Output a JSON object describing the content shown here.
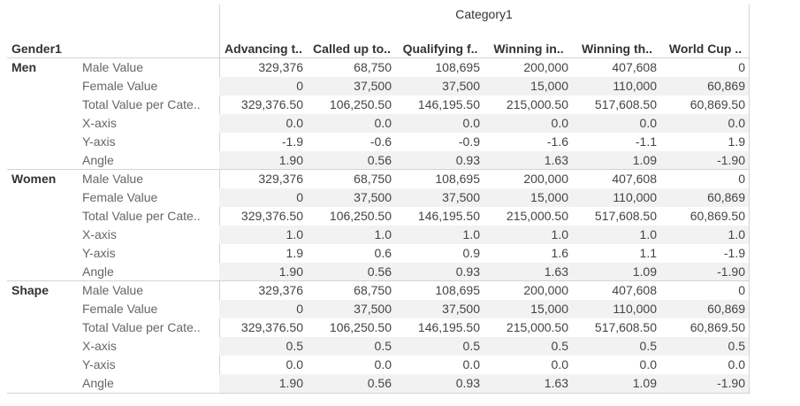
{
  "header": {
    "category_title": "Category1",
    "gender_title": "Gender1",
    "columns": [
      "Advancing t..",
      "Called up to..",
      "Qualifying f..",
      "Winning in..",
      "Winning th..",
      "World Cup .."
    ]
  },
  "table": {
    "groups": [
      {
        "label": "Men",
        "rows": [
          {
            "label": "Male Value",
            "values": [
              "329,376",
              "68,750",
              "108,695",
              "200,000",
              "407,608",
              "0"
            ]
          },
          {
            "label": "Female Value",
            "values": [
              "0",
              "37,500",
              "37,500",
              "15,000",
              "110,000",
              "60,869"
            ]
          },
          {
            "label": "Total Value per Cate..",
            "values": [
              "329,376.50",
              "106,250.50",
              "146,195.50",
              "215,000.50",
              "517,608.50",
              "60,869.50"
            ]
          },
          {
            "label": "X-axis",
            "values": [
              "0.0",
              "0.0",
              "0.0",
              "0.0",
              "0.0",
              "0.0"
            ]
          },
          {
            "label": "Y-axis",
            "values": [
              "-1.9",
              "-0.6",
              "-0.9",
              "-1.6",
              "-1.1",
              "1.9"
            ]
          },
          {
            "label": "Angle",
            "values": [
              "1.90",
              "0.56",
              "0.93",
              "1.63",
              "1.09",
              "-1.90"
            ]
          }
        ]
      },
      {
        "label": "Women",
        "rows": [
          {
            "label": "Male Value",
            "values": [
              "329,376",
              "68,750",
              "108,695",
              "200,000",
              "407,608",
              "0"
            ]
          },
          {
            "label": "Female Value",
            "values": [
              "0",
              "37,500",
              "37,500",
              "15,000",
              "110,000",
              "60,869"
            ]
          },
          {
            "label": "Total Value per Cate..",
            "values": [
              "329,376.50",
              "106,250.50",
              "146,195.50",
              "215,000.50",
              "517,608.50",
              "60,869.50"
            ]
          },
          {
            "label": "X-axis",
            "values": [
              "1.0",
              "1.0",
              "1.0",
              "1.0",
              "1.0",
              "1.0"
            ]
          },
          {
            "label": "Y-axis",
            "values": [
              "1.9",
              "0.6",
              "0.9",
              "1.6",
              "1.1",
              "-1.9"
            ]
          },
          {
            "label": "Angle",
            "values": [
              "1.90",
              "0.56",
              "0.93",
              "1.63",
              "1.09",
              "-1.90"
            ]
          }
        ]
      },
      {
        "label": "Shape",
        "rows": [
          {
            "label": "Male Value",
            "values": [
              "329,376",
              "68,750",
              "108,695",
              "200,000",
              "407,608",
              "0"
            ]
          },
          {
            "label": "Female Value",
            "values": [
              "0",
              "37,500",
              "37,500",
              "15,000",
              "110,000",
              "60,869"
            ]
          },
          {
            "label": "Total Value per Cate..",
            "values": [
              "329,376.50",
              "106,250.50",
              "146,195.50",
              "215,000.50",
              "517,608.50",
              "60,869.50"
            ]
          },
          {
            "label": "X-axis",
            "values": [
              "0.5",
              "0.5",
              "0.5",
              "0.5",
              "0.5",
              "0.5"
            ]
          },
          {
            "label": "Y-axis",
            "values": [
              "0.0",
              "0.0",
              "0.0",
              "0.0",
              "0.0",
              "0.0"
            ]
          },
          {
            "label": "Angle",
            "values": [
              "1.90",
              "0.56",
              "0.93",
              "1.63",
              "1.09",
              "-1.90"
            ]
          }
        ]
      }
    ]
  }
}
